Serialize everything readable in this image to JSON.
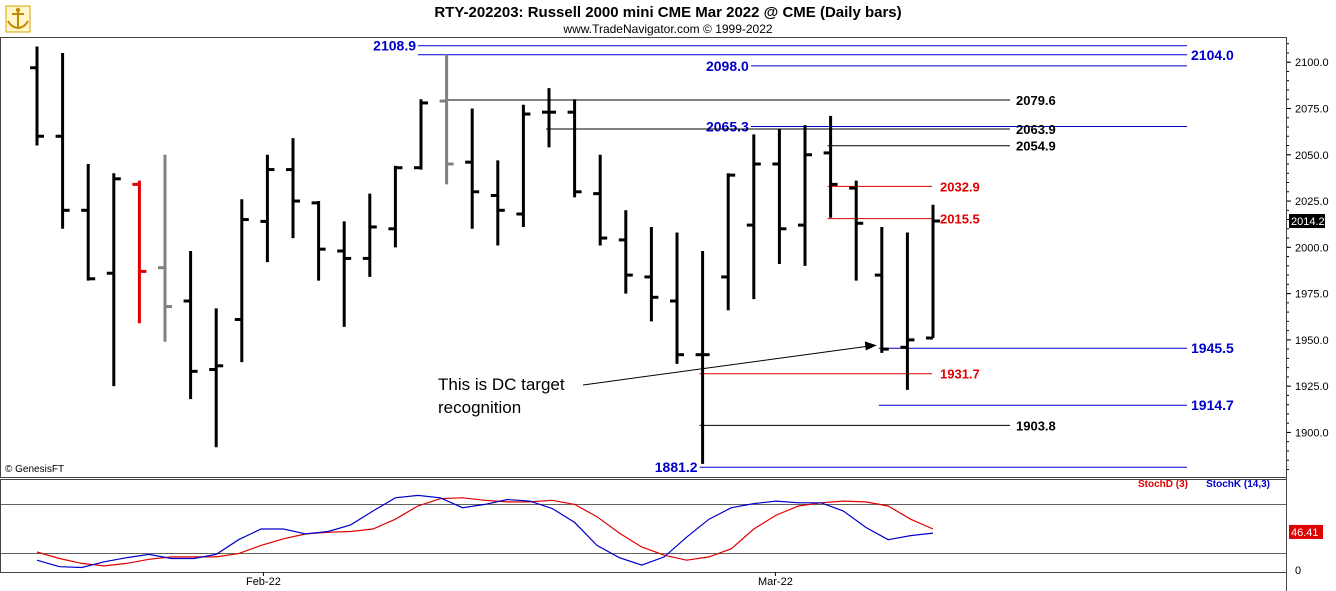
{
  "title": "RTY-202203:  Russell 2000 mini CME Mar 2022 @ CME  (Daily bars)",
  "subtitle": "www.TradeNavigator.com © 1999-2022",
  "watermark": "© GenesisFT",
  "colors": {
    "bar": "#000000",
    "bar_red": "#e00000",
    "bar_gray": "#808080",
    "blue": "#0000cc",
    "red": "#e00000",
    "stoch_d": "#e00000",
    "stoch_k": "#0000cc",
    "logo": "#e0b400"
  },
  "chart_data": [
    {
      "type": "ohlc",
      "ylim": [
        1877,
        2112
      ],
      "yticks": [
        "2100.0",
        "2075.0",
        "2050.0",
        "2025.0",
        "2000.0",
        "1975.0",
        "1950.0",
        "1925.0",
        "1900.0"
      ],
      "x_tick_labels": [
        "Feb-22",
        "Mar-22"
      ],
      "last_price_label": "2014.2",
      "bars": [
        {
          "o": 2097,
          "h": 2108.5,
          "l": 2055,
          "c": 2060,
          "color": "black"
        },
        {
          "o": 2060,
          "h": 2105,
          "l": 2010,
          "c": 2020,
          "color": "black"
        },
        {
          "o": 2020,
          "h": 2045,
          "l": 1982,
          "c": 1983,
          "color": "black"
        },
        {
          "o": 1986,
          "h": 2040,
          "l": 1925,
          "c": 2037,
          "color": "black"
        },
        {
          "o": 2034,
          "h": 2036,
          "l": 1959,
          "c": 1987,
          "color": "red"
        },
        {
          "o": 1989,
          "h": 2050,
          "l": 1949,
          "c": 1968,
          "color": "gray"
        },
        {
          "o": 1971,
          "h": 1998,
          "l": 1918,
          "c": 1933,
          "color": "black"
        },
        {
          "o": 1934,
          "h": 1967,
          "l": 1892,
          "c": 1936,
          "color": "black"
        },
        {
          "o": 1961,
          "h": 2026,
          "l": 1938,
          "c": 2015,
          "color": "black"
        },
        {
          "o": 2014,
          "h": 2050,
          "l": 1992,
          "c": 2042,
          "color": "black"
        },
        {
          "o": 2042,
          "h": 2059,
          "l": 2005,
          "c": 2025,
          "color": "black"
        },
        {
          "o": 2024,
          "h": 2025,
          "l": 1982,
          "c": 1999,
          "color": "black"
        },
        {
          "o": 1998,
          "h": 2014,
          "l": 1957,
          "c": 1994,
          "color": "black"
        },
        {
          "o": 1994,
          "h": 2029,
          "l": 1984,
          "c": 2011,
          "color": "black"
        },
        {
          "o": 2010,
          "h": 2044,
          "l": 2000,
          "c": 2043,
          "color": "black"
        },
        {
          "o": 2043,
          "h": 2080,
          "l": 2042,
          "c": 2078,
          "color": "black"
        },
        {
          "o": 2079,
          "h": 2104,
          "l": 2034,
          "c": 2045,
          "color": "gray"
        },
        {
          "o": 2046,
          "h": 2075,
          "l": 2010,
          "c": 2030,
          "color": "black"
        },
        {
          "o": 2028,
          "h": 2047,
          "l": 2001,
          "c": 2020,
          "color": "black"
        },
        {
          "o": 2018,
          "h": 2077,
          "l": 2011,
          "c": 2072,
          "color": "black"
        },
        {
          "o": 2073,
          "h": 2086,
          "l": 2054,
          "c": 2073,
          "color": "black"
        },
        {
          "o": 2073,
          "h": 2080,
          "l": 2027,
          "c": 2030,
          "color": "black"
        },
        {
          "o": 2029,
          "h": 2050,
          "l": 2001,
          "c": 2005,
          "color": "black"
        },
        {
          "o": 2004,
          "h": 2020,
          "l": 1975,
          "c": 1985,
          "color": "black"
        },
        {
          "o": 1984,
          "h": 2011,
          "l": 1960,
          "c": 1973,
          "color": "black"
        },
        {
          "o": 1971,
          "h": 2008,
          "l": 1937,
          "c": 1942,
          "color": "black"
        },
        {
          "o": 1942,
          "h": 1998,
          "l": 1883,
          "c": 1942,
          "color": "black"
        },
        {
          "o": 1984,
          "h": 2040,
          "l": 1966,
          "c": 2039,
          "color": "black"
        },
        {
          "o": 2012,
          "h": 2061,
          "l": 1972,
          "c": 2045,
          "color": "black"
        },
        {
          "o": 2045,
          "h": 2064,
          "l": 1991,
          "c": 2010,
          "color": "black"
        },
        {
          "o": 2012,
          "h": 2066,
          "l": 1990,
          "c": 2050,
          "color": "black"
        },
        {
          "o": 2051,
          "h": 2071,
          "l": 2016,
          "c": 2034,
          "color": "black"
        },
        {
          "o": 2032,
          "h": 2036,
          "l": 1982,
          "c": 2013,
          "color": "black"
        },
        {
          "o": 1985,
          "h": 2011,
          "l": 1943,
          "c": 1945,
          "color": "black"
        },
        {
          "o": 1946,
          "h": 2008,
          "l": 1923,
          "c": 1950,
          "color": "black"
        },
        {
          "o": 1951,
          "h": 2023,
          "l": 1951,
          "c": 2014.2,
          "color": "black"
        }
      ],
      "levels": [
        {
          "label": "2108.9",
          "value": 2108.9,
          "color": "blue",
          "start_bar": 15,
          "label_side": "left"
        },
        {
          "label": "2104.0",
          "value": 2104.0,
          "color": "blue",
          "start_bar": 15,
          "label_side": "right"
        },
        {
          "label": "2098.0",
          "value": 2098.0,
          "color": "blue",
          "start_bar": 28,
          "label_side": "left"
        },
        {
          "label": "2079.6",
          "value": 2079.6,
          "color": "black",
          "start_bar": 16,
          "label_side": "right"
        },
        {
          "label": "2065.3",
          "value": 2065.3,
          "color": "blue",
          "start_bar": 28,
          "label_side": "left"
        },
        {
          "label": "2063.9",
          "value": 2063.9,
          "color": "black",
          "start_bar": 20,
          "label_side": "right"
        },
        {
          "label": "2054.9",
          "value": 2054.9,
          "color": "black",
          "start_bar": 31,
          "label_side": "right"
        },
        {
          "label": "2032.9",
          "value": 2032.9,
          "color": "red",
          "start_bar": 31,
          "label_side": "right"
        },
        {
          "label": "2015.5",
          "value": 2015.5,
          "color": "red",
          "start_bar": 31,
          "label_side": "right"
        },
        {
          "label": "1945.5",
          "value": 1945.5,
          "color": "blue",
          "start_bar": 33,
          "label_side": "right"
        },
        {
          "label": "1931.7",
          "value": 1931.7,
          "color": "red",
          "start_bar": 26,
          "label_side": "right"
        },
        {
          "label": "1914.7",
          "value": 1914.7,
          "color": "blue",
          "start_bar": 33,
          "label_side": "right"
        },
        {
          "label": "1903.8",
          "value": 1903.8,
          "color": "black",
          "start_bar": 26,
          "label_side": "right"
        },
        {
          "label": "1881.2",
          "value": 1881.2,
          "color": "blue",
          "start_bar": 26,
          "label_side": "left"
        }
      ],
      "annotation": {
        "lines": [
          "This is DC target",
          "recognition"
        ],
        "arrow_to_bar": 33,
        "arrow_to_value": 1947
      }
    },
    {
      "type": "line",
      "ylim": [
        0,
        100
      ],
      "yticks": [
        "0"
      ],
      "legend": [
        "StochD (3)",
        "StochK (14,3)"
      ],
      "last_value_label": "46.41",
      "series": [
        {
          "name": "StochD (3)",
          "values": [
            22,
            14,
            8,
            5,
            8,
            13,
            16,
            16,
            16,
            20,
            30,
            38,
            44,
            46,
            47,
            50,
            62,
            78,
            87,
            88,
            85,
            83,
            83,
            85,
            80,
            65,
            45,
            28,
            18,
            12,
            16,
            26,
            50,
            67,
            78,
            82,
            84,
            83,
            78,
            62,
            50
          ]
        },
        {
          "name": "StochK (14,3)",
          "values": [
            12,
            4,
            3,
            10,
            15,
            19,
            14,
            14,
            19,
            37,
            50,
            50,
            44,
            47,
            55,
            72,
            88,
            91,
            88,
            76,
            80,
            86,
            84,
            75,
            58,
            30,
            15,
            6,
            16,
            40,
            62,
            76,
            81,
            84,
            82,
            82,
            72,
            52,
            37,
            42,
            45
          ]
        }
      ]
    }
  ]
}
